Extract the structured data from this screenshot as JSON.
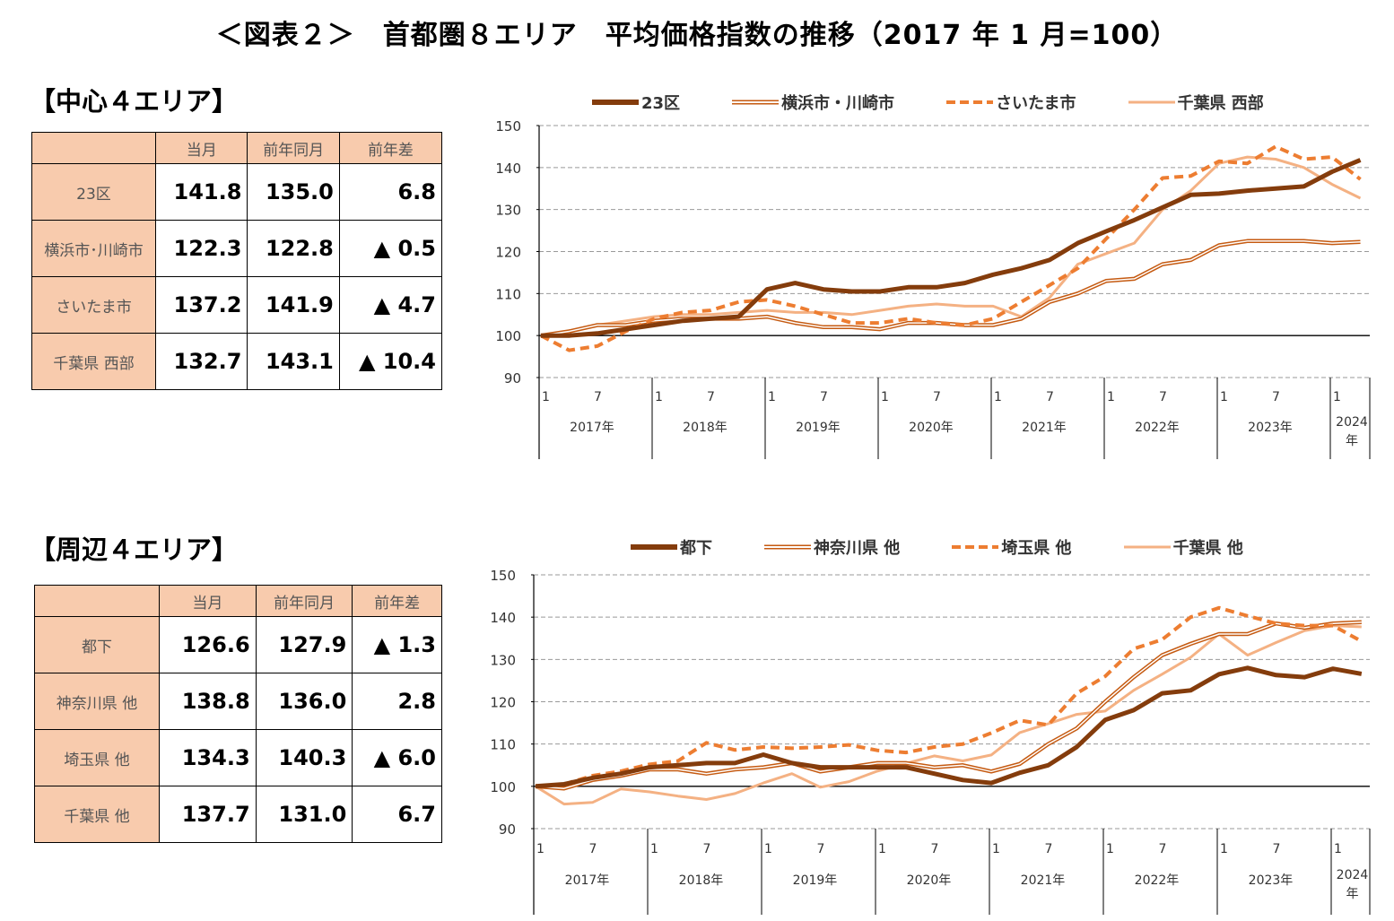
{
  "title": "＜図表２＞　首都圏８エリア　平均価格指数の推移（2017 年 1 月=100）",
  "tables": [
    {
      "heading": "【中心４エリア】",
      "columns": [
        "",
        "当月",
        "前年同月",
        "前年差"
      ],
      "rows": [
        {
          "label": "23区",
          "current": "141.8",
          "prev_year": "135.0",
          "diff": "6.8"
        },
        {
          "label": "横浜市･川崎市",
          "current": "122.3",
          "prev_year": "122.8",
          "diff": "▲ 0.5"
        },
        {
          "label": "さいたま市",
          "current": "137.2",
          "prev_year": "141.9",
          "diff": "▲ 4.7"
        },
        {
          "label": "千葉県 西部",
          "current": "132.7",
          "prev_year": "143.1",
          "diff": "▲ 10.4"
        }
      ]
    },
    {
      "heading": "【周辺４エリア】",
      "columns": [
        "",
        "当月",
        "前年同月",
        "前年差"
      ],
      "rows": [
        {
          "label": "都下",
          "current": "126.6",
          "prev_year": "127.9",
          "diff": "▲ 1.3"
        },
        {
          "label": "神奈川県 他",
          "current": "138.8",
          "prev_year": "136.0",
          "diff": "2.8"
        },
        {
          "label": "埼玉県 他",
          "current": "134.3",
          "prev_year": "140.3",
          "diff": "▲ 6.0"
        },
        {
          "label": "千葉県 他",
          "current": "137.7",
          "prev_year": "131.0",
          "diff": "6.7"
        }
      ]
    }
  ],
  "chart_data": [
    {
      "type": "line",
      "ylim": [
        90,
        150
      ],
      "yticks": [
        90,
        100,
        110,
        120,
        130,
        140,
        150
      ],
      "grid": true,
      "legend_position": "top",
      "x_month_labels": [
        "1",
        "7"
      ],
      "x_year_labels": [
        "2017年",
        "2018年",
        "2019年",
        "2020年",
        "2021年",
        "2022年",
        "2023年",
        "2024年"
      ],
      "x": [
        "2017-01",
        "2017-04",
        "2017-07",
        "2017-10",
        "2018-01",
        "2018-04",
        "2018-07",
        "2018-10",
        "2019-01",
        "2019-04",
        "2019-07",
        "2019-10",
        "2020-01",
        "2020-04",
        "2020-07",
        "2020-10",
        "2021-01",
        "2021-04",
        "2021-07",
        "2021-10",
        "2022-01",
        "2022-04",
        "2022-07",
        "2022-10",
        "2023-01",
        "2023-04",
        "2023-07",
        "2023-10",
        "2024-01",
        "2024-04"
      ],
      "series": [
        {
          "name": "23区",
          "color": "#843C0C",
          "style": "thick",
          "values": [
            100,
            100,
            100.5,
            101.5,
            102.5,
            103.5,
            104,
            104.5,
            111,
            112.5,
            111,
            110.5,
            110.5,
            111.5,
            111.5,
            112.5,
            114.5,
            116,
            118,
            122,
            124.8,
            127.5,
            130.5,
            133.5,
            133.8,
            134.5,
            135,
            135.5,
            139,
            141.8
          ]
        },
        {
          "name": "横浜市・川崎市",
          "color": "#C55A11",
          "style": "double",
          "values": [
            100,
            101,
            102.5,
            102.5,
            103.5,
            104,
            104,
            104,
            104.5,
            103,
            102,
            102,
            101.5,
            103,
            103,
            102.5,
            102.5,
            104,
            108,
            110,
            113,
            113.5,
            117,
            118,
            121.5,
            122.5,
            122.5,
            122.5,
            122,
            122.3
          ]
        },
        {
          "name": "さいたま市",
          "color": "#ED7D31",
          "style": "dashed",
          "values": [
            100,
            96.5,
            97.5,
            101,
            104,
            105.5,
            106,
            108,
            108.5,
            107,
            105,
            103,
            103,
            104,
            103,
            102.5,
            104,
            108,
            112,
            116,
            123,
            130,
            137.5,
            138,
            141.5,
            141,
            145,
            142,
            142.5,
            137.2
          ]
        },
        {
          "name": "千葉県 西部",
          "color": "#F4B183",
          "style": "solid",
          "values": [
            100,
            101,
            102.5,
            103.5,
            104.5,
            105,
            105,
            105.5,
            106,
            105.5,
            105.5,
            105,
            106,
            107,
            107.5,
            107,
            107,
            104.5,
            109,
            117,
            119.5,
            122,
            130,
            134.5,
            141,
            142.5,
            142,
            140,
            136,
            132.7
          ]
        }
      ]
    },
    {
      "type": "line",
      "ylim": [
        90,
        150
      ],
      "yticks": [
        90,
        100,
        110,
        120,
        130,
        140,
        150
      ],
      "grid": true,
      "legend_position": "top",
      "x_month_labels": [
        "1",
        "7"
      ],
      "x_year_labels": [
        "2017年",
        "2018年",
        "2019年",
        "2020年",
        "2021年",
        "2022年",
        "2023年",
        "2024年"
      ],
      "x": [
        "2017-01",
        "2017-04",
        "2017-07",
        "2017-10",
        "2018-01",
        "2018-04",
        "2018-07",
        "2018-10",
        "2019-01",
        "2019-04",
        "2019-07",
        "2019-10",
        "2020-01",
        "2020-04",
        "2020-07",
        "2020-10",
        "2021-01",
        "2021-04",
        "2021-07",
        "2021-10",
        "2022-01",
        "2022-04",
        "2022-07",
        "2022-10",
        "2023-01",
        "2023-04",
        "2023-07",
        "2023-10",
        "2024-01",
        "2024-04"
      ],
      "series": [
        {
          "name": "都下",
          "color": "#843C0C",
          "style": "thick",
          "values": [
            100,
            100.5,
            102,
            103,
            104.5,
            105,
            105.5,
            105.5,
            107.5,
            105.5,
            104.5,
            104.5,
            104.5,
            104.5,
            103,
            101.5,
            100.8,
            103.2,
            105,
            109.3,
            115.7,
            118,
            122,
            122.7,
            126.5,
            128,
            126.3,
            125.8,
            127.8,
            126.6
          ]
        },
        {
          "name": "神奈川県 他",
          "color": "#C55A11",
          "style": "double",
          "values": [
            100,
            99.5,
            101.5,
            102.5,
            104,
            104,
            103,
            104,
            104.5,
            105.5,
            103.5,
            104.5,
            105.5,
            105.5,
            104.5,
            105,
            103.5,
            105.3,
            110,
            113.7,
            120,
            125.8,
            131,
            133.7,
            136,
            136,
            138.5,
            137.5,
            138.5,
            138.8
          ]
        },
        {
          "name": "埼玉県 他",
          "color": "#ED7D31",
          "style": "dashed",
          "values": [
            100,
            100.5,
            102.5,
            103.6,
            105.2,
            106,
            110.3,
            108.6,
            109.3,
            109,
            109.3,
            109.8,
            108.5,
            108,
            109.3,
            110,
            112.6,
            115.6,
            114.5,
            122,
            126,
            132.5,
            134.7,
            140,
            142.2,
            140.3,
            138.5,
            138,
            138,
            134.3
          ]
        },
        {
          "name": "千葉県 他",
          "color": "#F4B183",
          "style": "solid",
          "values": [
            100,
            95.8,
            96.2,
            99.4,
            98.7,
            97.7,
            96.9,
            98.3,
            100.8,
            103,
            99.8,
            101.1,
            103.6,
            105.4,
            107.2,
            106,
            107.4,
            112.7,
            114.8,
            117,
            117.8,
            122.7,
            126.5,
            130.5,
            136,
            131,
            134,
            136.8,
            138,
            137.7
          ]
        }
      ]
    }
  ]
}
